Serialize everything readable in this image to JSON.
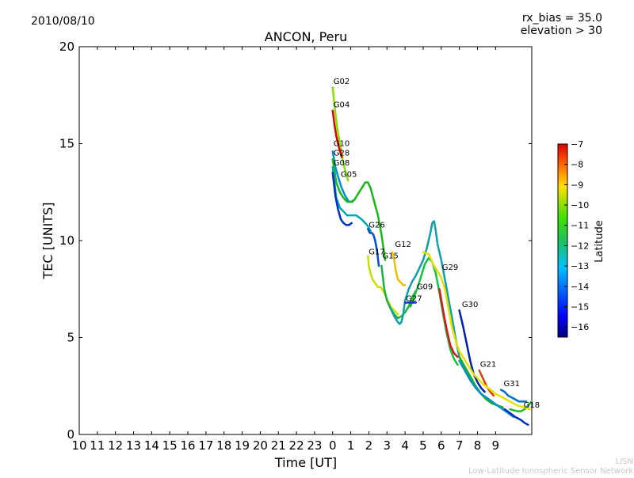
{
  "page": {
    "date": "2010/08/10",
    "params": [
      "rx_bias = 35.0",
      "elevation > 30"
    ],
    "credit": [
      "LISN",
      "Low-Latitude Ionospheric Sensor Network"
    ]
  },
  "colorbar": {
    "label": "Latitude",
    "range": [
      -16.5,
      -7
    ],
    "ticks": [
      -7,
      -8,
      -9,
      -10,
      -11,
      -12,
      -13,
      -14,
      -15,
      -16
    ],
    "tick_labels": [
      "−7",
      "−8",
      "−9",
      "−10",
      "−11",
      "−12",
      "−13",
      "−14",
      "−15",
      "−16"
    ]
  },
  "chart_data": {
    "type": "line",
    "title": "ANCON, Peru",
    "xlabel": "Time [UT]",
    "ylabel": "TEC [UNITS]",
    "xlim": [
      -14,
      11
    ],
    "ylim": [
      0,
      20
    ],
    "grid": false,
    "x_tick_labels": [
      "10",
      "11",
      "12",
      "13",
      "14",
      "15",
      "16",
      "17",
      "18",
      "19",
      "20",
      "21",
      "22",
      "23",
      "0",
      "1",
      "2",
      "3",
      "4",
      "5",
      "6",
      "7",
      "8",
      "9"
    ],
    "y_ticks": [
      0,
      5,
      10,
      15,
      20
    ],
    "y_tick_labels": [
      "0",
      "5",
      "10",
      "15",
      "20"
    ],
    "series": [
      {
        "name": "G02",
        "color": "#88e000",
        "label_at": [
          0.0,
          18.0
        ],
        "x": [
          0.0,
          0.1,
          0.25,
          0.4,
          0.55,
          0.7,
          0.85
        ],
        "y": [
          17.9,
          17.0,
          15.8,
          15.0,
          14.2,
          13.6,
          13.1
        ]
      },
      {
        "name": "G04",
        "color": "#e00000",
        "label_at": [
          0.0,
          16.8
        ],
        "x": [
          0.0,
          0.1,
          0.2,
          0.35,
          0.5
        ],
        "y": [
          16.7,
          16.0,
          15.4,
          14.8,
          14.3
        ]
      },
      {
        "name": "G10",
        "color": "#0090d0",
        "label_at": [
          0.0,
          14.8
        ],
        "x": [
          0.0,
          0.15,
          0.3,
          0.5,
          0.7,
          0.9,
          1.1
        ],
        "y": [
          14.6,
          13.8,
          13.3,
          12.7,
          12.3,
          12.0,
          12.0
        ]
      },
      {
        "name": "G28",
        "color": "#18b818",
        "label_at": [
          0.0,
          14.3
        ],
        "x": [
          0.0,
          0.2,
          0.4,
          0.6,
          0.8,
          1.0,
          1.2,
          1.4,
          1.6,
          1.8,
          1.95,
          2.1,
          2.3,
          2.5,
          2.7,
          2.9
        ],
        "y": [
          14.2,
          13.0,
          12.5,
          12.2,
          12.0,
          12.0,
          12.1,
          12.4,
          12.7,
          13.0,
          13.0,
          12.7,
          12.0,
          11.3,
          10.3,
          9.0
        ]
      },
      {
        "name": "G08",
        "color": "#00a8b0",
        "label_at": [
          0.0,
          13.8
        ],
        "x": [
          0.0,
          0.2,
          0.4,
          0.6,
          0.8,
          1.0,
          1.3,
          1.6,
          1.9,
          2.1
        ],
        "y": [
          13.8,
          12.2,
          11.7,
          11.5,
          11.3,
          11.3,
          11.3,
          11.1,
          10.8,
          10.5
        ]
      },
      {
        "name": "G05",
        "color": "#0030c0",
        "label_at": [
          0.4,
          13.2
        ],
        "x": [
          0.0,
          0.15,
          0.3,
          0.45,
          0.6,
          0.75,
          0.9,
          1.05
        ],
        "y": [
          13.5,
          12.3,
          11.6,
          11.1,
          10.9,
          10.8,
          10.8,
          10.9
        ]
      },
      {
        "name": "G26",
        "color": "#0050d0",
        "label_at": [
          1.95,
          10.6
        ],
        "x": [
          1.95,
          2.05,
          2.15,
          2.25,
          2.35,
          2.45,
          2.55
        ],
        "y": [
          10.6,
          10.4,
          10.4,
          10.3,
          10.0,
          9.5,
          8.7
        ]
      },
      {
        "name": "G12",
        "color": "#f0c000",
        "label_at": [
          3.4,
          9.6
        ],
        "x": [
          3.3,
          3.4,
          3.5,
          3.6,
          3.7,
          3.8,
          3.9,
          4.0
        ],
        "y": [
          9.4,
          9.0,
          8.4,
          8.0,
          7.9,
          7.8,
          7.7,
          7.7
        ]
      },
      {
        "name": "G17",
        "color": "#c8e000",
        "label_at": [
          1.95,
          9.2
        ],
        "x": [
          1.95,
          2.0,
          2.1,
          2.2,
          2.35,
          2.5,
          2.65,
          2.8,
          3.0,
          3.2,
          3.4,
          3.6
        ],
        "y": [
          9.2,
          8.7,
          8.3,
          8.0,
          7.8,
          7.6,
          7.6,
          7.4,
          7.0,
          6.6,
          6.4,
          6.2
        ]
      },
      {
        "name": "G15",
        "color": "#20b040",
        "label_at": [
          2.7,
          9.0
        ],
        "x": [
          2.7,
          2.85,
          3.0,
          3.2,
          3.4,
          3.6,
          3.8,
          4.0,
          4.2,
          4.4,
          4.6
        ],
        "y": [
          8.7,
          7.5,
          6.9,
          6.5,
          6.2,
          6.0,
          6.1,
          6.3,
          6.6,
          7.1,
          7.4
        ]
      },
      {
        "name": "G29",
        "color": "#10a0a8",
        "label_at": [
          6.0,
          8.4
        ],
        "x": [
          3.2,
          3.4,
          3.6,
          3.7,
          3.8,
          3.9,
          4.0,
          4.2,
          4.4,
          4.6,
          4.8,
          5.0,
          5.2,
          5.4,
          5.5,
          5.6,
          5.7,
          5.8,
          6.0,
          6.2,
          6.4,
          6.6,
          6.8,
          7.0
        ],
        "y": [
          6.5,
          6.1,
          5.8,
          5.7,
          5.8,
          6.2,
          6.9,
          7.5,
          7.9,
          8.2,
          8.6,
          9.0,
          9.6,
          10.4,
          10.9,
          11.0,
          10.5,
          9.8,
          9.0,
          8.0,
          7.0,
          6.0,
          4.9,
          4.0
        ]
      },
      {
        "name": "G09",
        "color": "#18c040",
        "label_at": [
          4.6,
          7.4
        ],
        "x": [
          4.3,
          4.5,
          4.7,
          4.9,
          5.1,
          5.3,
          5.5,
          5.7,
          5.9,
          6.1,
          6.3,
          6.5,
          6.7,
          6.9
        ],
        "y": [
          6.6,
          7.1,
          7.6,
          8.2,
          8.8,
          9.1,
          8.9,
          8.3,
          7.3,
          6.2,
          5.2,
          4.4,
          3.9,
          3.6
        ]
      },
      {
        "name": "G27",
        "color": "#1030c0",
        "label_at": [
          4.0,
          6.8
        ],
        "x": [
          4.0,
          4.2,
          4.4,
          4.6
        ],
        "y": [
          6.8,
          6.8,
          6.8,
          6.8
        ]
      },
      {
        "name": "G30",
        "color": "#0020b0",
        "label_at": [
          7.1,
          6.5
        ],
        "x": [
          7.0,
          7.2,
          7.4,
          7.6,
          7.8,
          8.0,
          8.2,
          8.4
        ],
        "y": [
          6.4,
          5.6,
          4.7,
          3.8,
          3.1,
          2.7,
          2.4,
          2.2
        ]
      },
      {
        "name": "G21",
        "color": "#e04000",
        "label_at": [
          8.1,
          3.4
        ],
        "x": [
          8.1,
          8.3,
          8.5,
          8.7,
          8.9
        ],
        "y": [
          3.3,
          2.9,
          2.5,
          2.2,
          2.0
        ]
      },
      {
        "name": "G31",
        "color": "#0070d0",
        "label_at": [
          9.4,
          2.4
        ],
        "x": [
          9.3,
          9.5,
          9.7,
          9.9,
          10.1,
          10.3,
          10.5,
          10.7
        ],
        "y": [
          2.3,
          2.2,
          2.0,
          1.9,
          1.8,
          1.7,
          1.7,
          1.7
        ]
      },
      {
        "name": "G18",
        "color": "#20c020",
        "label_at": [
          10.5,
          1.3
        ],
        "x": [
          9.8,
          10.0,
          10.2,
          10.4,
          10.6,
          10.8,
          11.0
        ],
        "y": [
          1.3,
          1.25,
          1.2,
          1.2,
          1.3,
          1.5,
          1.7
        ]
      },
      {
        "name": "",
        "color": "#e8e000",
        "label_at": null,
        "x": [
          5.0,
          5.3,
          5.6,
          5.8,
          6.0,
          6.2,
          6.4,
          6.6,
          6.8,
          7.0,
          7.2,
          7.4,
          7.6,
          7.8,
          8.0,
          8.3,
          8.6,
          9.0,
          9.4,
          9.8,
          10.2,
          10.6,
          10.9
        ],
        "y": [
          9.4,
          9.3,
          8.7,
          8.4,
          8.1,
          7.5,
          6.5,
          5.5,
          4.8,
          4.3,
          4.0,
          3.7,
          3.4,
          3.1,
          2.9,
          2.6,
          2.4,
          2.1,
          1.9,
          1.7,
          1.5,
          1.4,
          1.3
        ]
      },
      {
        "name": "",
        "color": "#d81818",
        "label_at": null,
        "x": [
          5.9,
          6.1,
          6.3,
          6.5,
          6.7,
          6.9
        ],
        "y": [
          7.5,
          6.4,
          5.4,
          4.6,
          4.2,
          4.0
        ]
      },
      {
        "name": "",
        "color": "#18b018",
        "label_at": null,
        "x": [
          7.0,
          7.3,
          7.6,
          7.9,
          8.2,
          8.5,
          8.8,
          9.1,
          9.4
        ],
        "y": [
          4.0,
          3.5,
          3.0,
          2.5,
          2.1,
          1.8,
          1.6,
          1.5,
          1.4
        ]
      },
      {
        "name": "",
        "color": "#0090d0",
        "label_at": null,
        "x": [
          7.0,
          7.3,
          7.6,
          7.9,
          8.2,
          8.5,
          8.8,
          9.1,
          9.4,
          9.7,
          10.0
        ],
        "y": [
          3.8,
          3.3,
          2.8,
          2.4,
          2.1,
          1.9,
          1.7,
          1.5,
          1.3,
          1.1,
          0.9
        ]
      },
      {
        "name": "",
        "color": "#0030c0",
        "label_at": null,
        "x": [
          9.5,
          9.8,
          10.1,
          10.4,
          10.6,
          10.8
        ],
        "y": [
          1.3,
          1.1,
          0.9,
          0.75,
          0.6,
          0.5
        ]
      }
    ]
  }
}
